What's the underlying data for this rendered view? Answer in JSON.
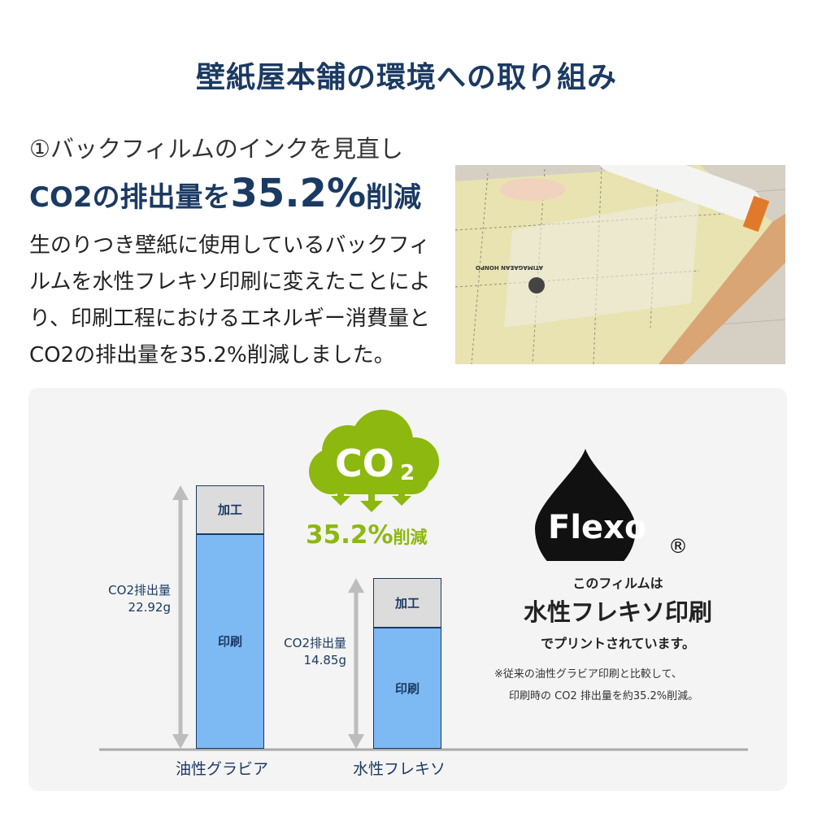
{
  "header": {
    "title": "壁紙屋本舗の環境への取り組み"
  },
  "section": {
    "heading_line1": "①バックフィルムのインクを見直し",
    "heading_line2_prefix": "CO2の排出量を",
    "heading_line2_value": "35.2%",
    "heading_line2_suffix": "削減",
    "body": "生のりつき壁紙に使用しているバックフィルムを水性フレキソ印刷に変えたことにより、印刷工程におけるエネルギー消費量とCO2の排出量を35.2%削減しました。",
    "photo_film_text": "ATIMAGAEAN HONPO"
  },
  "badge": {
    "cloud_text": "CO",
    "cloud_sub": "2",
    "reduction": "35.2%",
    "reduction_suffix": "削減",
    "color": "#8cb80f"
  },
  "flexo": {
    "logo": "Flexo",
    "registered": "®",
    "line1": "このフィルムは",
    "line2": "水性フレキソ印刷",
    "line3": "でプリントされています。",
    "note1": "※従来の油性グラビア印刷と比較して、",
    "note2": "印刷時の CO2 排出量を約35.2%削減。"
  },
  "chart_data": {
    "type": "bar",
    "stacked": true,
    "categories": [
      "油性グラビア",
      "水性フレキソ"
    ],
    "series": [
      {
        "name": "印刷",
        "values": [
          18.68,
          10.55
        ],
        "color": "#7db9f2"
      },
      {
        "name": "加工",
        "values": [
          4.24,
          4.3
        ],
        "color": "#dcdcdc"
      }
    ],
    "totals": [
      22.92,
      14.85
    ],
    "total_labels": [
      {
        "label": "CO2排出量",
        "value": "22.92g"
      },
      {
        "label": "CO2排出量",
        "value": "14.85g"
      }
    ],
    "ylim": [
      0,
      22.92
    ],
    "grid": false
  }
}
